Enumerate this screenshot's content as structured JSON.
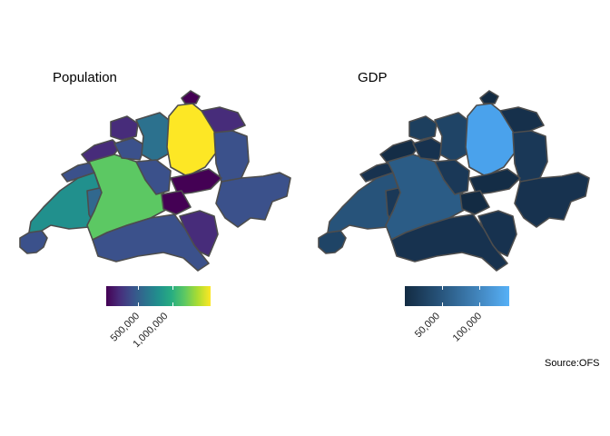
{
  "panels": [
    {
      "title": "Population",
      "legend_ticks": [
        "500,000",
        "1,000,000"
      ],
      "palette": "viridis",
      "range": [
        16000,
        1520000
      ]
    },
    {
      "title": "GDP",
      "legend_ticks": [
        "50,000",
        "100,000"
      ],
      "palette": "blues",
      "range": [
        5000,
        150000
      ]
    }
  ],
  "source": "Source:OFS",
  "colors": {
    "border": "#4d4d4d",
    "viridis_low": "#440154",
    "viridis_high": "#fde725",
    "blues_low": "#132b43",
    "blues_high": "#56b1f7"
  }
}
